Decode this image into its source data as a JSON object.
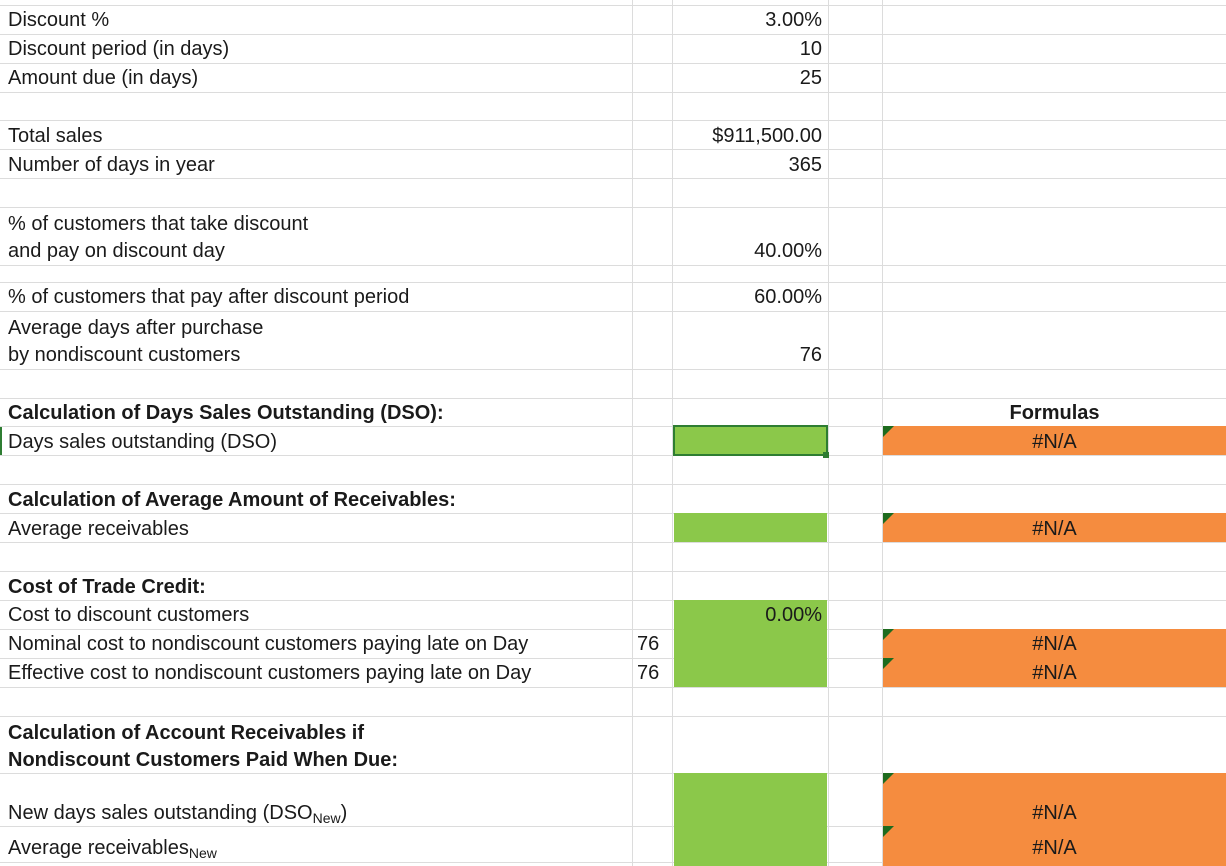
{
  "inputs": {
    "discount_pct": {
      "label": "Discount %",
      "value": "3.00%"
    },
    "discount_period": {
      "label": "Discount period (in days)",
      "value": "10"
    },
    "amount_due": {
      "label": "Amount due (in days)",
      "value": "25"
    },
    "total_sales": {
      "label": "Total sales",
      "value": "$911,500.00"
    },
    "days_in_year": {
      "label": "Number of days in year",
      "value": "365"
    },
    "pct_discount": {
      "label_line1": "% of customers that take discount",
      "label_line2": "and pay on discount day",
      "value": "40.00%"
    },
    "pct_after": {
      "label": "% of customers that pay after discount period",
      "value": "60.00%"
    },
    "avg_days": {
      "label_line1": "Average days after purchase",
      "label_line2": "by nondiscount customers",
      "value": "76"
    }
  },
  "dso": {
    "heading": "Calculation of Days Sales Outstanding (DSO):",
    "formulas_header": "Formulas",
    "label": "Days sales outstanding (DSO)",
    "formula": "#N/A"
  },
  "receivables": {
    "heading": "Calculation of Average Amount of Receivables:",
    "label": "Average receivables",
    "formula": "#N/A"
  },
  "trade_credit": {
    "heading": "Cost of Trade Credit:",
    "cost_discount_label": "Cost to discount customers",
    "cost_discount_value": "0.00%",
    "nominal_label": "Nominal cost to nondiscount customers paying late on Day",
    "nominal_day": "76",
    "nominal_formula": "#N/A",
    "effective_label": "Effective cost to nondiscount customers paying late on Day",
    "effective_day": "76",
    "effective_formula": "#N/A"
  },
  "paid_when_due": {
    "heading_line1": "Calculation of Account Receivables if",
    "heading_line2": "Nondiscount Customers Paid When Due:",
    "new_dso_label": "New days sales outstanding (DSO",
    "new_dso_sub": "New",
    "new_dso_close": ")",
    "new_dso_formula": "#N/A",
    "avg_recv_label": "Average receivables",
    "avg_recv_sub": "New",
    "avg_recv_formula": "#N/A"
  },
  "colors": {
    "green": "#8bc84a",
    "orange": "#f58c3f",
    "selection": "#2e7d32"
  }
}
